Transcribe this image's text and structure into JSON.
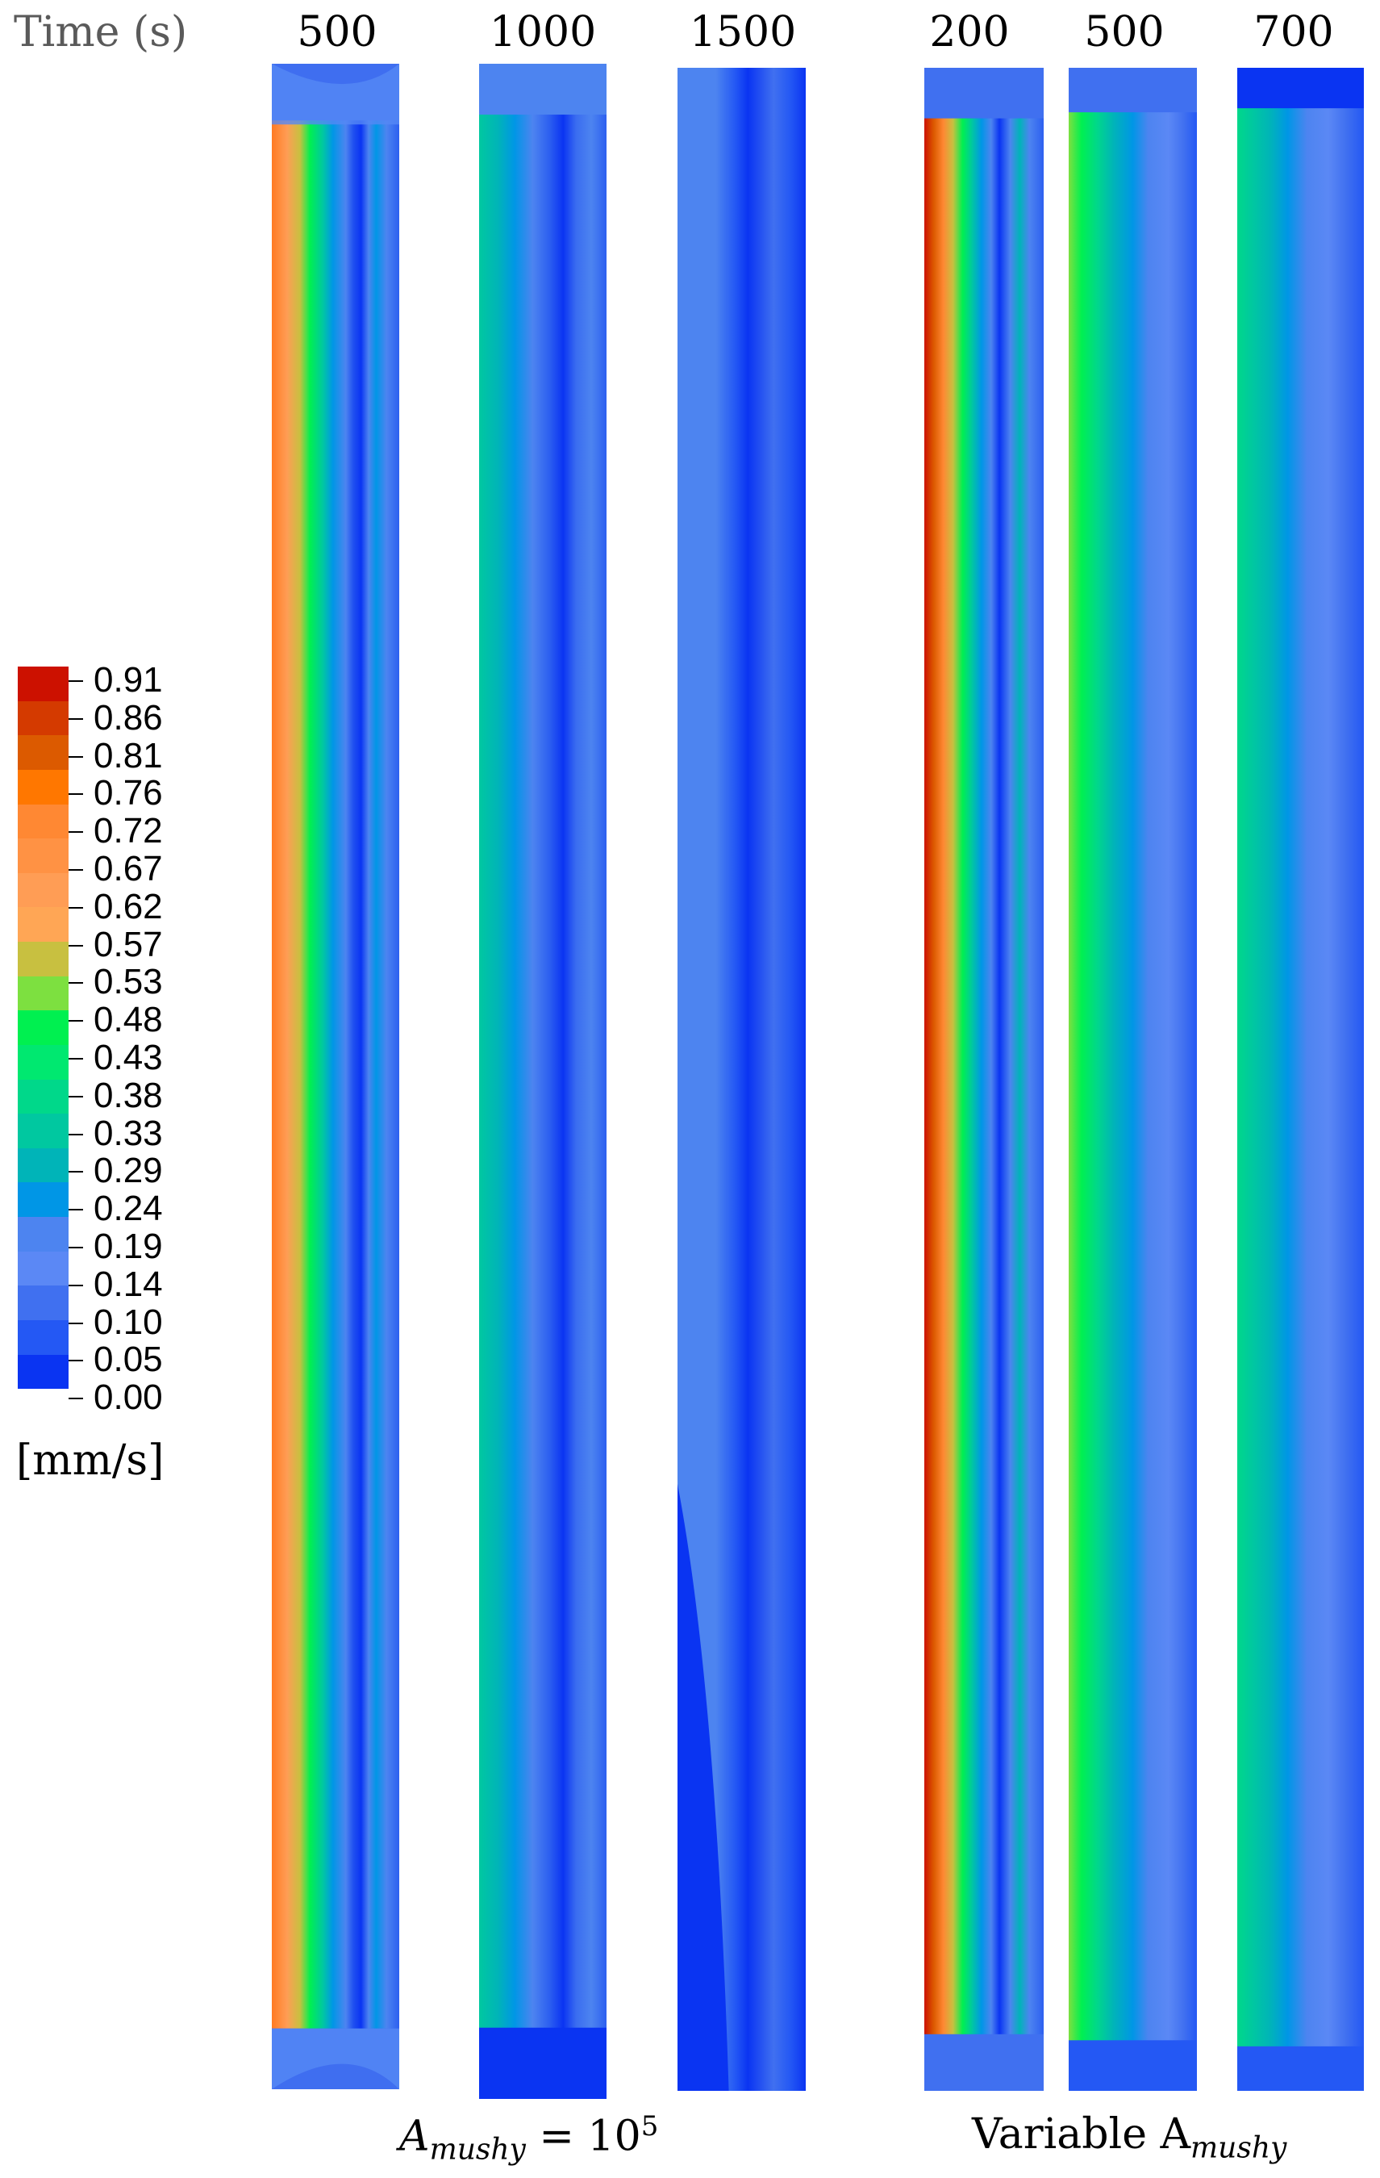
{
  "time_label": "Time (s)",
  "columns": [
    {
      "time": "500"
    },
    {
      "time": "1000"
    },
    {
      "time": "1500"
    },
    {
      "time": "200"
    },
    {
      "time": "500"
    },
    {
      "time": "700"
    }
  ],
  "legend": {
    "units": "[mm/s]",
    "colors": [
      "#cc1100",
      "#d43a00",
      "#dc5a00",
      "#ff7700",
      "#ff8833",
      "#ff9244",
      "#ff9d55",
      "#ffa655",
      "#c8c040",
      "#7de040",
      "#00f050",
      "#00e870",
      "#00d88a",
      "#00c8a0",
      "#00b4b8",
      "#0096e6",
      "#4d84f0",
      "#5b88f5",
      "#4070f0",
      "#2458f4",
      "#0a34f2"
    ],
    "labels": [
      "0.91",
      "0.86",
      "0.81",
      "0.76",
      "0.72",
      "0.67",
      "0.62",
      "0.57",
      "0.53",
      "0.48",
      "0.43",
      "0.38",
      "0.33",
      "0.29",
      "0.24",
      "0.19",
      "0.14",
      "0.10",
      "0.05",
      "0.00"
    ]
  },
  "groups": {
    "a": {
      "prefix": "A",
      "sub": "mushy",
      "rest": " = 10",
      "sup": "5"
    },
    "b": {
      "prefix": "Variable A",
      "sub": "mushy"
    }
  }
}
